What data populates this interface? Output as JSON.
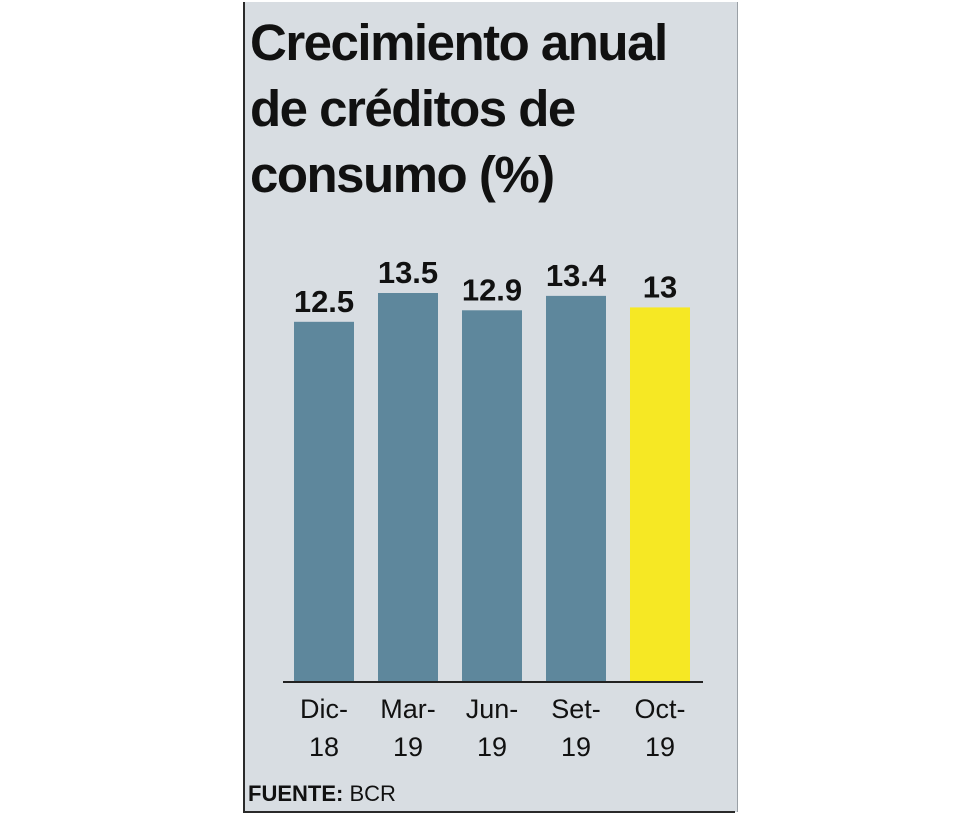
{
  "title_lines": [
    "Crecimiento anual",
    "de créditos de",
    "consumo (%)"
  ],
  "source": {
    "label": "FUENTE:",
    "value": "BCR"
  },
  "colors": {
    "bar": "#5e879c",
    "highlight": "#f6e824",
    "background": "#d8dde2",
    "text": "#111111"
  },
  "chart_data": {
    "type": "bar",
    "title": "Crecimiento anual de créditos de consumo (%)",
    "categories": [
      "Dic-18",
      "Mar-19",
      "Jun-19",
      "Set-19",
      "Oct-19"
    ],
    "category_lines": [
      [
        "Dic-",
        "18"
      ],
      [
        "Mar-",
        "19"
      ],
      [
        "Jun-",
        "19"
      ],
      [
        "Set-",
        "19"
      ],
      [
        "Oct-",
        "19"
      ]
    ],
    "values": [
      12.5,
      13.5,
      12.9,
      13.4,
      13
    ],
    "labels": [
      "12.5",
      "13.5",
      "12.9",
      "13.4",
      "13"
    ],
    "highlight_index": 4,
    "xlabel": "",
    "ylabel": "",
    "ylim": [
      0,
      13.5
    ]
  }
}
